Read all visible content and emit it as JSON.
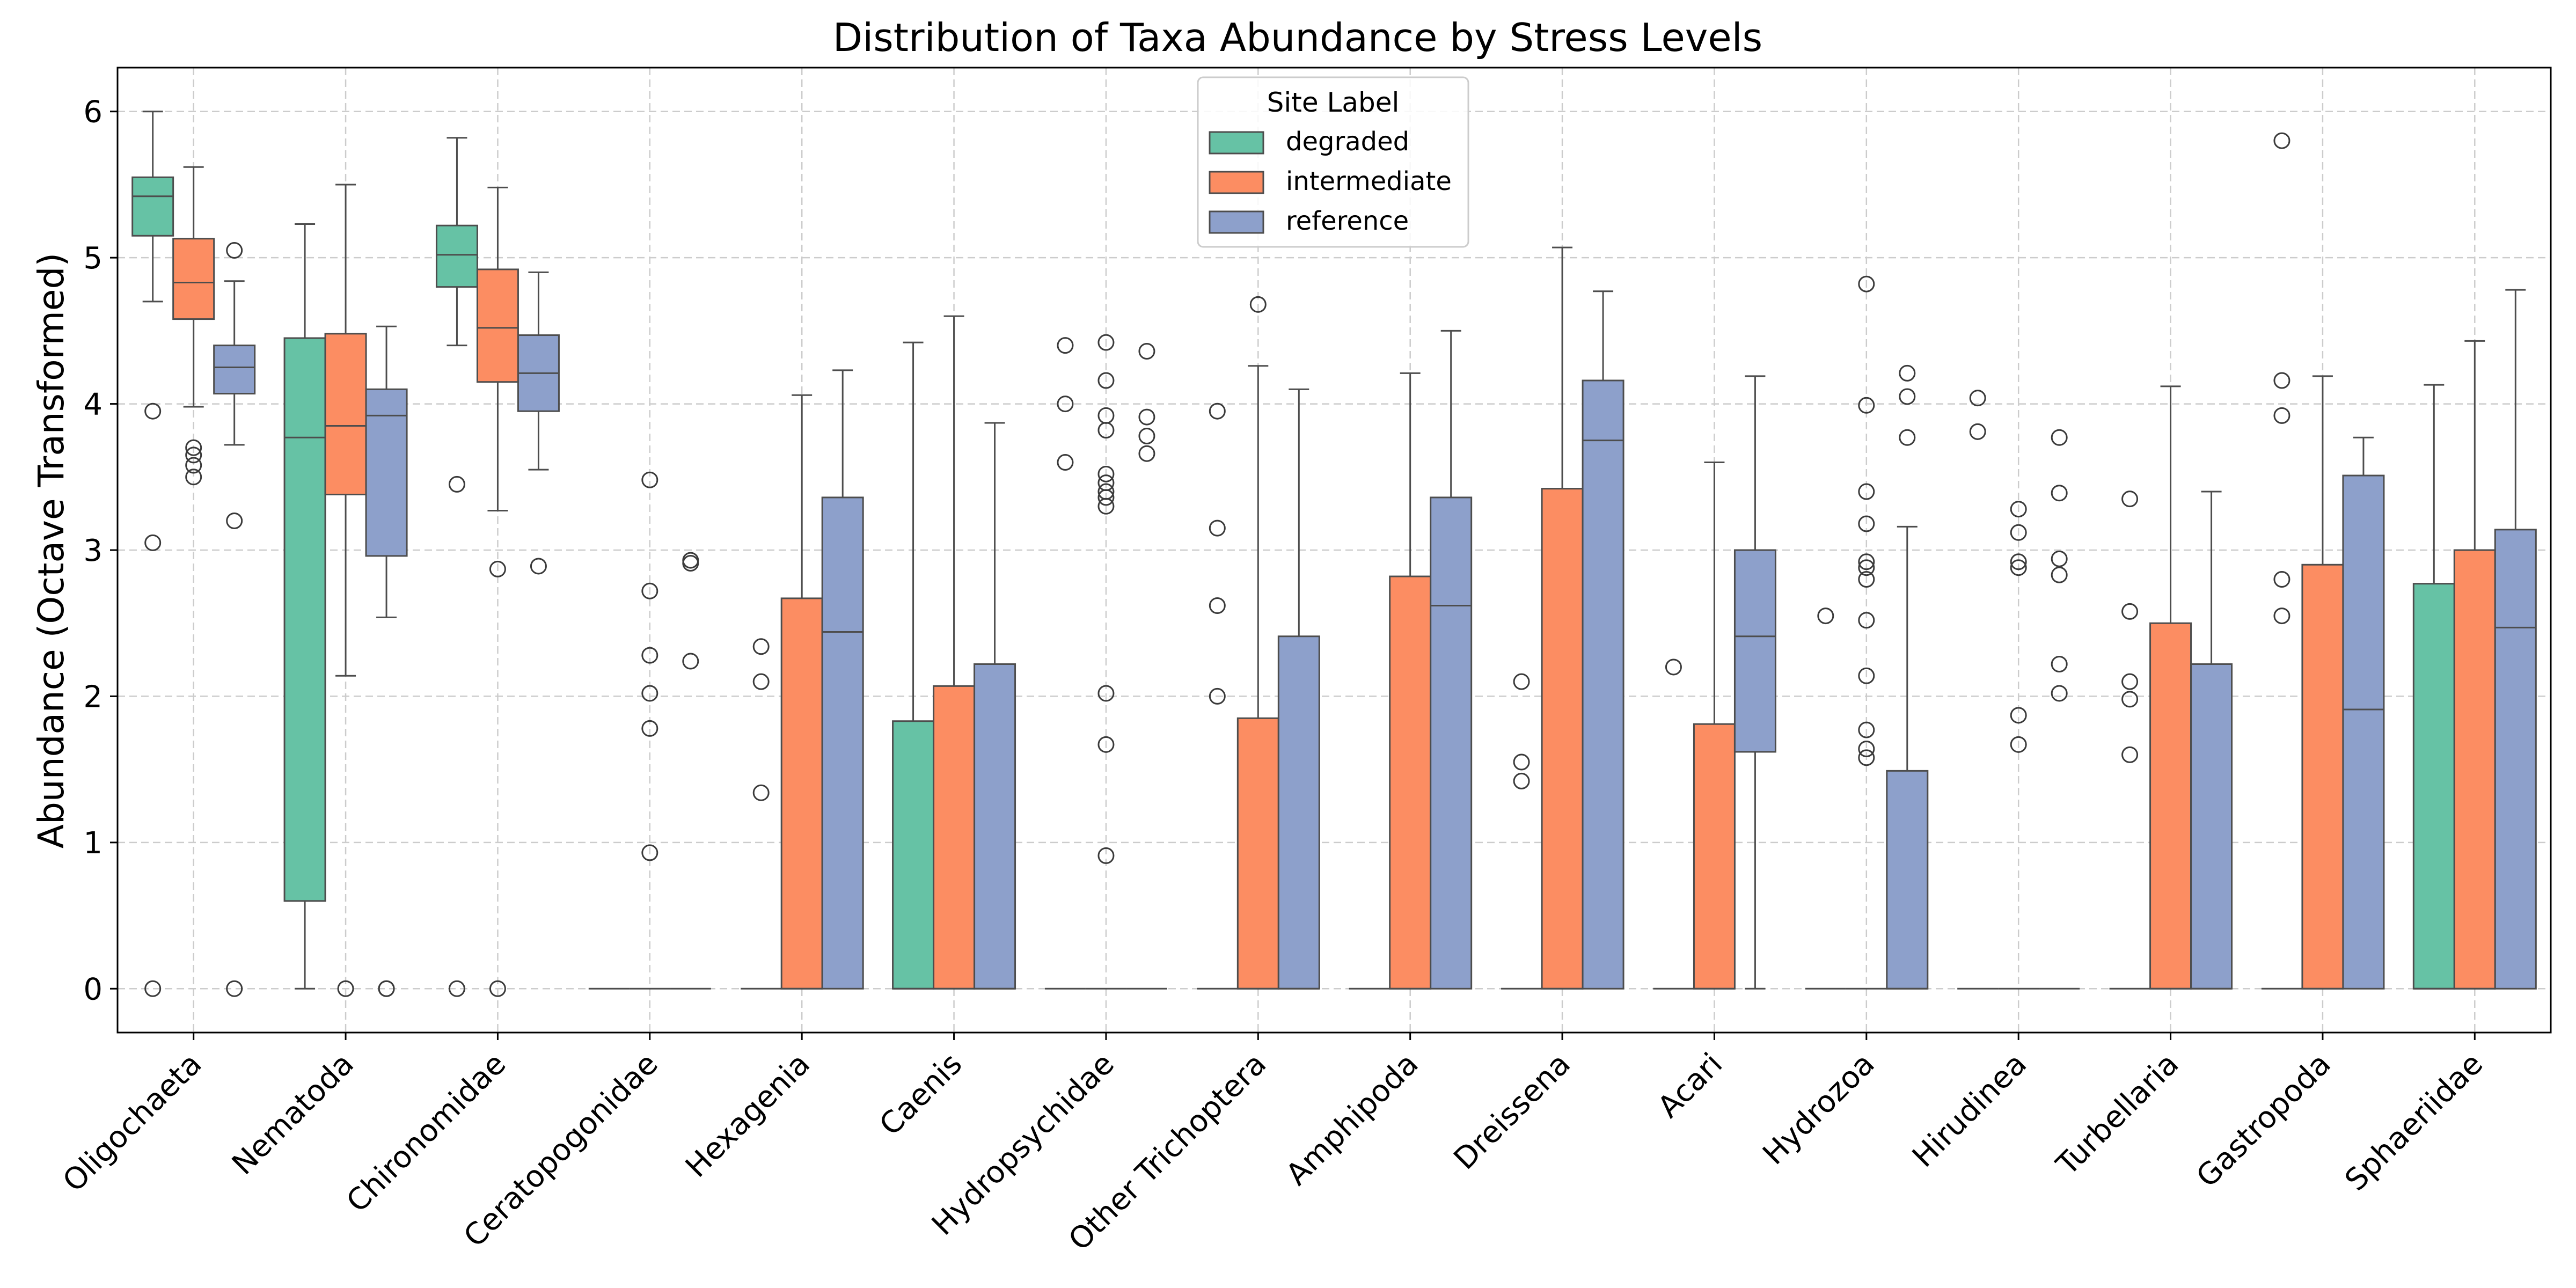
{
  "chart_data": {
    "type": "box",
    "title": "Distribution of Taxa Abundance by Stress Levels",
    "xlabel": "",
    "ylabel": "Abundance (Octave Transformed)",
    "ylim": [
      -0.3,
      6.3
    ],
    "yticks": [
      0,
      1,
      2,
      3,
      4,
      5,
      6
    ],
    "grid": true,
    "legend": {
      "title": "Site Label",
      "placement": "top-center"
    },
    "categories": [
      "Oligochaeta",
      "Nematoda",
      "Chironomidae",
      "Ceratopogonidae",
      "Hexagenia",
      "Caenis",
      "Hydropsychidae",
      "Other Trichoptera",
      "Amphipoda",
      "Dreissena",
      "Acari",
      "Hydrozoa",
      "Hirudinea",
      "Turbellaria",
      "Gastropoda",
      "Sphaeriidae"
    ],
    "series": [
      {
        "name": "degraded",
        "color": "#66c2a5",
        "boxes": [
          {
            "q1": 5.15,
            "median": 5.42,
            "q3": 5.55,
            "whislo": 4.7,
            "whishi": 6.0,
            "fliers": [
              3.95,
              3.05,
              0
            ]
          },
          {
            "q1": 0.6,
            "median": 3.77,
            "q3": 4.45,
            "whislo": 0,
            "whishi": 5.23,
            "fliers": []
          },
          {
            "q1": 4.8,
            "median": 5.02,
            "q3": 5.22,
            "whislo": 4.4,
            "whishi": 5.82,
            "fliers": [
              3.45,
              0
            ]
          },
          {
            "q1": 0,
            "median": 0,
            "q3": 0,
            "whislo": 0,
            "whishi": 0,
            "fliers": []
          },
          {
            "q1": 0,
            "median": 0,
            "q3": 0,
            "whislo": 0,
            "whishi": 0,
            "fliers": []
          },
          {
            "q1": 0,
            "median": 0,
            "q3": 1.83,
            "whislo": 0,
            "whishi": 4.42,
            "fliers": []
          },
          {
            "q1": 0,
            "median": 0,
            "q3": 0,
            "whislo": 0,
            "whishi": 0,
            "fliers": [
              4.4,
              4.0,
              3.6
            ]
          },
          {
            "q1": 0,
            "median": 0,
            "q3": 0,
            "whislo": 0,
            "whishi": 0,
            "fliers": []
          },
          {
            "q1": 0,
            "median": 0,
            "q3": 0,
            "whislo": 0,
            "whishi": 0,
            "fliers": []
          },
          {
            "q1": 0,
            "median": 0,
            "q3": 0,
            "whislo": 0,
            "whishi": 0,
            "fliers": []
          },
          {
            "q1": 0,
            "median": 0,
            "q3": 0,
            "whislo": 0,
            "whishi": 0,
            "fliers": []
          },
          {
            "q1": 0,
            "median": 0,
            "q3": 0,
            "whislo": 0,
            "whishi": 0,
            "fliers": [
              2.55
            ]
          },
          {
            "q1": 0,
            "median": 0,
            "q3": 0,
            "whislo": 0,
            "whishi": 0,
            "fliers": []
          },
          {
            "q1": 0,
            "median": 0,
            "q3": 0,
            "whislo": 0,
            "whishi": 0,
            "fliers": []
          },
          {
            "q1": 0,
            "median": 0,
            "q3": 0,
            "whislo": 0,
            "whishi": 0,
            "fliers": []
          },
          {
            "q1": 0,
            "median": 0,
            "q3": 2.77,
            "whislo": 0,
            "whishi": 4.13,
            "fliers": []
          }
        ]
      },
      {
        "name": "intermediate",
        "color": "#fc8d62",
        "boxes": [
          {
            "q1": 4.58,
            "median": 4.83,
            "q3": 5.13,
            "whislo": 3.98,
            "whishi": 5.62,
            "fliers": [
              3.7,
              3.65,
              3.58,
              3.5
            ]
          },
          {
            "q1": 3.38,
            "median": 3.85,
            "q3": 4.48,
            "whislo": 2.14,
            "whishi": 5.5,
            "fliers": [
              0
            ]
          },
          {
            "q1": 4.15,
            "median": 4.52,
            "q3": 4.92,
            "whislo": 3.27,
            "whishi": 5.48,
            "fliers": [
              2.87,
              0
            ]
          },
          {
            "q1": 0,
            "median": 0,
            "q3": 0,
            "whislo": 0,
            "whishi": 0,
            "fliers": [
              3.48,
              2.72,
              2.28,
              2.02,
              1.78,
              0.93
            ]
          },
          {
            "q1": 0,
            "median": 0,
            "q3": 2.67,
            "whislo": 0,
            "whishi": 4.06,
            "fliers": []
          },
          {
            "q1": 0,
            "median": 0,
            "q3": 2.07,
            "whislo": 0,
            "whishi": 4.6,
            "fliers": []
          },
          {
            "q1": 0,
            "median": 0,
            "q3": 0,
            "whislo": 0,
            "whishi": 0,
            "fliers": [
              4.42,
              4.16,
              3.92,
              3.82,
              3.52,
              3.46,
              3.4,
              3.36,
              3.3,
              2.02,
              1.67,
              0.91
            ]
          },
          {
            "q1": 0,
            "median": 0,
            "q3": 1.85,
            "whislo": 0,
            "whishi": 4.26,
            "fliers": [
              4.68
            ]
          },
          {
            "q1": 0,
            "median": 0,
            "q3": 2.82,
            "whislo": 0,
            "whishi": 4.21,
            "fliers": []
          },
          {
            "q1": 0,
            "median": 0,
            "q3": 3.42,
            "whislo": 0,
            "whishi": 5.07,
            "fliers": []
          },
          {
            "q1": 0,
            "median": 0,
            "q3": 1.81,
            "whislo": 0,
            "whishi": 3.6,
            "fliers": []
          },
          {
            "q1": 0,
            "median": 0,
            "q3": 0,
            "whislo": 0,
            "whishi": 0,
            "fliers": [
              4.82,
              3.99,
              3.4,
              3.18,
              2.92,
              2.88,
              2.8,
              2.52,
              2.14,
              1.77,
              1.64,
              1.58
            ]
          },
          {
            "q1": 0,
            "median": 0,
            "q3": 0,
            "whislo": 0,
            "whishi": 0,
            "fliers": [
              3.28,
              3.12,
              2.92,
              2.88,
              1.87,
              1.67
            ]
          },
          {
            "q1": 0,
            "median": 0,
            "q3": 2.5,
            "whislo": 0,
            "whishi": 4.12,
            "fliers": []
          },
          {
            "q1": 0,
            "median": 0,
            "q3": 2.9,
            "whislo": 0,
            "whishi": 4.19,
            "fliers": []
          },
          {
            "q1": 0,
            "median": 0,
            "q3": 3.0,
            "whislo": 0,
            "whishi": 4.43,
            "fliers": []
          }
        ]
      },
      {
        "name": "reference",
        "color": "#8da0cb",
        "boxes": [
          {
            "q1": 4.07,
            "median": 4.25,
            "q3": 4.4,
            "whislo": 3.72,
            "whishi": 4.84,
            "fliers": [
              5.05,
              3.2
            ]
          },
          {
            "q1": 2.96,
            "median": 3.92,
            "q3": 4.1,
            "whislo": 2.54,
            "whishi": 4.53,
            "fliers": [
              0
            ]
          },
          {
            "q1": 3.95,
            "median": 4.21,
            "q3": 4.47,
            "whislo": 3.55,
            "whishi": 4.9,
            "fliers": [
              2.89
            ]
          },
          {
            "q1": 0,
            "median": 0,
            "q3": 0,
            "whislo": 0,
            "whishi": 0,
            "fliers": [
              2.93,
              2.91,
              2.24
            ]
          },
          {
            "q1": 0,
            "median": 2.44,
            "q3": 3.36,
            "whislo": 0,
            "whishi": 4.23,
            "fliers": []
          },
          {
            "q1": 0,
            "median": 0,
            "q3": 2.22,
            "whislo": 0,
            "whishi": 3.87,
            "fliers": []
          },
          {
            "q1": 0,
            "median": 0,
            "q3": 0,
            "whislo": 0,
            "whishi": 0,
            "fliers": [
              4.36,
              3.91,
              3.78,
              3.66
            ]
          },
          {
            "q1": 0,
            "median": 0,
            "q3": 2.41,
            "whislo": 0,
            "whishi": 4.1,
            "fliers": []
          },
          {
            "q1": 0,
            "median": 2.62,
            "q3": 3.36,
            "whislo": 0,
            "whishi": 4.5,
            "fliers": []
          },
          {
            "q1": 0,
            "median": 3.75,
            "q3": 4.16,
            "whislo": 0,
            "whishi": 4.77,
            "fliers": []
          },
          {
            "q1": 1.62,
            "median": 2.41,
            "q3": 3.0,
            "whislo": 0,
            "whishi": 4.19,
            "fliers": []
          },
          {
            "q1": 0,
            "median": 0,
            "q3": 1.49,
            "whislo": 0,
            "whishi": 3.16,
            "fliers": [
              4.21,
              4.05,
              3.77
            ]
          },
          {
            "q1": 0,
            "median": 0,
            "q3": 0,
            "whislo": 0,
            "whishi": 0,
            "fliers": [
              3.39,
              2.94,
              2.83,
              2.22,
              2.02
            ]
          },
          {
            "q1": 0,
            "median": 0,
            "q3": 2.22,
            "whislo": 0,
            "whishi": 3.4,
            "fliers": []
          },
          {
            "q1": 0,
            "median": 1.91,
            "q3": 3.51,
            "whislo": 0,
            "whishi": 3.77,
            "fliers": []
          },
          {
            "q1": 0,
            "median": 2.47,
            "q3": 3.14,
            "whislo": 0,
            "whishi": 4.78,
            "fliers": []
          }
        ]
      }
    ],
    "extra_fliers": [
      {
        "category": 0,
        "series": 1,
        "values": []
      },
      {
        "category": 3,
        "series": 0,
        "values": []
      }
    ],
    "outlier_marks": [
      {
        "category": 0,
        "series": 2,
        "value": 0
      },
      {
        "category": 1,
        "series": 2,
        "value": 0
      },
      {
        "category": 12,
        "series": 0,
        "value": 4.04
      },
      {
        "category": 12,
        "series": 0,
        "value": 3.81
      },
      {
        "category": 12,
        "series": 2,
        "value": 3.77
      },
      {
        "category": 14,
        "series": 0,
        "value": 5.8
      },
      {
        "category": 14,
        "series": 0,
        "value": 4.16
      },
      {
        "category": 14,
        "series": 0,
        "value": 3.92
      },
      {
        "category": 14,
        "series": 0,
        "value": 2.8
      },
      {
        "category": 14,
        "series": 0,
        "value": 2.55
      },
      {
        "category": 13,
        "series": 0,
        "value": 3.35
      },
      {
        "category": 13,
        "series": 0,
        "value": 2.58
      },
      {
        "category": 13,
        "series": 0,
        "value": 2.1
      },
      {
        "category": 13,
        "series": 0,
        "value": 1.98
      },
      {
        "category": 13,
        "series": 0,
        "value": 1.6
      },
      {
        "category": 9,
        "series": 0,
        "value": 2.1
      },
      {
        "category": 9,
        "series": 0,
        "value": 1.55
      },
      {
        "category": 9,
        "series": 0,
        "value": 1.42
      },
      {
        "category": 10,
        "series": 0,
        "value": 2.2
      },
      {
        "category": 7,
        "series": 0,
        "value": 3.95
      },
      {
        "category": 7,
        "series": 0,
        "value": 3.15
      },
      {
        "category": 7,
        "series": 0,
        "value": 2.62
      },
      {
        "category": 7,
        "series": 0,
        "value": 2.0
      },
      {
        "category": 4,
        "series": 0,
        "value": 2.34
      },
      {
        "category": 4,
        "series": 0,
        "value": 2.1
      },
      {
        "category": 4,
        "series": 0,
        "value": 1.34
      }
    ]
  }
}
